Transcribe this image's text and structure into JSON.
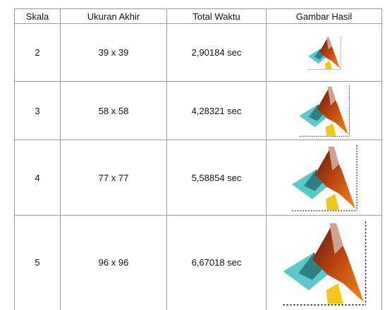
{
  "table": {
    "header": [
      "Skala",
      "Ukuran Akhir",
      "Total Waktu",
      "Gambar Hasil"
    ],
    "rows": [
      [
        "2",
        "39 x 39",
        "2,90184 sec"
      ],
      [
        "3",
        "58 x 58",
        "4,28321 sec"
      ],
      [
        "4",
        "77 x 77",
        "5,58854 sec"
      ],
      [
        "5",
        "96 x 96",
        "6,67018 sec"
      ]
    ]
  }
}
